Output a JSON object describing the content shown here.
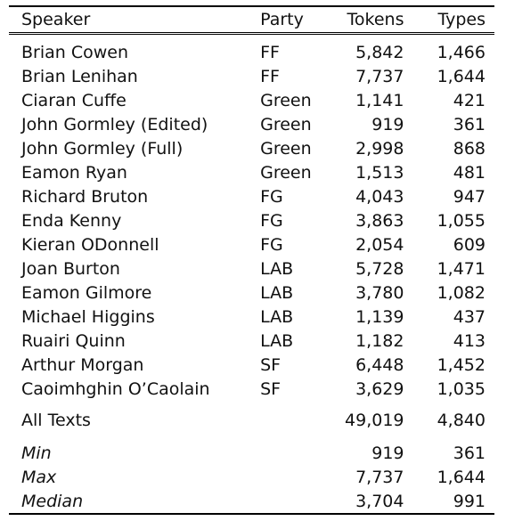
{
  "table": {
    "headers": {
      "speaker": "Speaker",
      "party": "Party",
      "tokens": "Tokens",
      "types": "Types"
    },
    "rows": [
      {
        "speaker": "Brian Cowen",
        "party": "FF",
        "tokens": "5,842",
        "types": "1,466"
      },
      {
        "speaker": "Brian Lenihan",
        "party": "FF",
        "tokens": "7,737",
        "types": "1,644"
      },
      {
        "speaker": "Ciaran Cuffe",
        "party": "Green",
        "tokens": "1,141",
        "types": "421"
      },
      {
        "speaker": "John Gormley (Edited)",
        "party": "Green",
        "tokens": "919",
        "types": "361"
      },
      {
        "speaker": "John Gormley (Full)",
        "party": "Green",
        "tokens": "2,998",
        "types": "868"
      },
      {
        "speaker": "Eamon Ryan",
        "party": "Green",
        "tokens": "1,513",
        "types": "481"
      },
      {
        "speaker": "Richard Bruton",
        "party": "FG",
        "tokens": "4,043",
        "types": "947"
      },
      {
        "speaker": "Enda Kenny",
        "party": "FG",
        "tokens": "3,863",
        "types": "1,055"
      },
      {
        "speaker": "Kieran ODonnell",
        "party": "FG",
        "tokens": "2,054",
        "types": "609"
      },
      {
        "speaker": "Joan Burton",
        "party": "LAB",
        "tokens": "5,728",
        "types": "1,471"
      },
      {
        "speaker": "Eamon Gilmore",
        "party": "LAB",
        "tokens": "3,780",
        "types": "1,082"
      },
      {
        "speaker": "Michael Higgins",
        "party": "LAB",
        "tokens": "1,139",
        "types": "437"
      },
      {
        "speaker": "Ruairi Quinn",
        "party": "LAB",
        "tokens": "1,182",
        "types": "413"
      },
      {
        "speaker": "Arthur Morgan",
        "party": "SF",
        "tokens": "6,448",
        "types": "1,452"
      },
      {
        "speaker": "Caoimhghin O’Caolain",
        "party": "SF",
        "tokens": "3,629",
        "types": "1,035"
      }
    ],
    "totals": {
      "label": "All Texts",
      "tokens": "49,019",
      "types": "4,840"
    },
    "summary": [
      {
        "label": "Min",
        "tokens": "919",
        "types": "361"
      },
      {
        "label": "Max",
        "tokens": "7,737",
        "types": "1,644"
      },
      {
        "label": "Median",
        "tokens": "3,704",
        "types": "991"
      }
    ]
  }
}
